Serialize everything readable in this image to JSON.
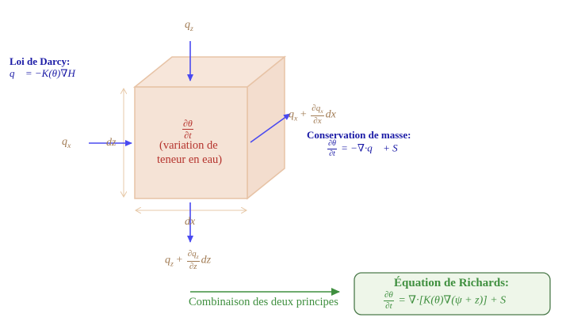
{
  "darcy": {
    "title": "Loi de Darcy:",
    "formula": "q⃗ = −K(θ)∇H"
  },
  "flux": {
    "qz_top": "q",
    "qz_top_sub": "z",
    "qx_left": "q",
    "qx_left_sub": "x",
    "qx_out_pre": "q",
    "qx_out_sub": "x",
    "qx_out_plus": " + ",
    "qx_out_num": "∂q",
    "qx_out_num_sub": "x",
    "qx_out_den": "∂x",
    "qx_out_post": "dx",
    "qz_out_pre": "q",
    "qz_out_sub": "z",
    "qz_out_plus": " + ",
    "qz_out_num": "∂q",
    "qz_out_num_sub": "z",
    "qz_out_den": "∂z",
    "qz_out_post": "dz"
  },
  "cube": {
    "dtheta_num": "∂θ",
    "dtheta_den": "∂t",
    "caption_line1": "(variation de",
    "caption_line2": "teneur en eau)",
    "dz": "dz",
    "dx": "dx"
  },
  "conservation": {
    "title": "Conservation de masse:",
    "num": "∂θ",
    "den": "∂t",
    "rhs": "= −∇·q⃗ + S"
  },
  "combine": {
    "label": "Combinaison des deux principes"
  },
  "richards": {
    "title": "Équation de Richards:",
    "num": "∂θ",
    "den": "∂t",
    "rhs": "= ∇·[K(θ)∇(ψ + z)] + S"
  },
  "colors": {
    "cube_fill": "#f5e3d6",
    "cube_edge": "#e7c3a6",
    "arrow": "#4a4af0",
    "dimension": "#e7c9a8",
    "brown": "#a07a52",
    "red": "#b5332d",
    "navy": "#1a1aa6",
    "green": "#3f8f3f",
    "richards_box_fill": "#eef6e9",
    "richards_box_edge": "#4b7a4b"
  }
}
